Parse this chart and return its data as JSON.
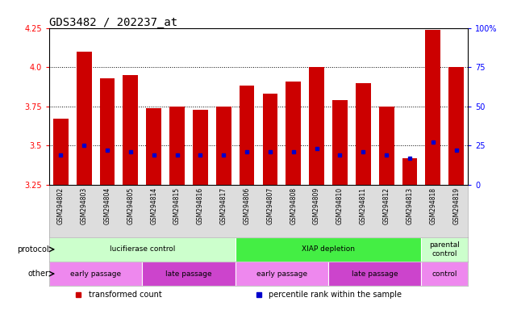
{
  "title": "GDS3482 / 202237_at",
  "samples": [
    "GSM294802",
    "GSM294803",
    "GSM294804",
    "GSM294805",
    "GSM294814",
    "GSM294815",
    "GSM294816",
    "GSM294817",
    "GSM294806",
    "GSM294807",
    "GSM294808",
    "GSM294809",
    "GSM294810",
    "GSM294811",
    "GSM294812",
    "GSM294813",
    "GSM294818",
    "GSM294819"
  ],
  "transformed_count": [
    3.67,
    4.1,
    3.93,
    3.95,
    3.74,
    3.75,
    3.73,
    3.75,
    3.88,
    3.83,
    3.91,
    4.0,
    3.79,
    3.9,
    3.75,
    3.42,
    4.24,
    4.0
  ],
  "percentile_rank": [
    3.44,
    3.5,
    3.47,
    3.46,
    3.44,
    3.44,
    3.44,
    3.44,
    3.46,
    3.46,
    3.46,
    3.48,
    3.44,
    3.46,
    3.44,
    3.42,
    3.52,
    3.47
  ],
  "ylim": [
    3.25,
    4.25
  ],
  "yticks": [
    3.25,
    3.5,
    3.75,
    4.0,
    4.25
  ],
  "y2lim": [
    0,
    100
  ],
  "y2ticks": [
    0,
    25,
    50,
    75,
    100
  ],
  "bar_color": "#cc0000",
  "percentile_color": "#0000cc",
  "bar_width": 0.65,
  "protocol_groups": [
    {
      "label": "lucifierase control",
      "start": 0,
      "end": 8,
      "color": "#ccffcc"
    },
    {
      "label": "XIAP depletion",
      "start": 8,
      "end": 16,
      "color": "#44ee44"
    },
    {
      "label": "parental\ncontrol",
      "start": 16,
      "end": 18,
      "color": "#ccffcc"
    }
  ],
  "other_groups": [
    {
      "label": "early passage",
      "start": 0,
      "end": 4,
      "color": "#ee88ee"
    },
    {
      "label": "late passage",
      "start": 4,
      "end": 8,
      "color": "#cc44cc"
    },
    {
      "label": "early passage",
      "start": 8,
      "end": 12,
      "color": "#ee88ee"
    },
    {
      "label": "late passage",
      "start": 12,
      "end": 16,
      "color": "#cc44cc"
    },
    {
      "label": "control",
      "start": 16,
      "end": 18,
      "color": "#ee88ee"
    }
  ],
  "legend_items": [
    {
      "label": "transformed count",
      "color": "#cc0000"
    },
    {
      "label": "percentile rank within the sample",
      "color": "#0000cc"
    }
  ],
  "background_color": "#ffffff",
  "title_fontsize": 10,
  "tick_fontsize": 7,
  "protocol_label": "protocol",
  "other_label": "other"
}
